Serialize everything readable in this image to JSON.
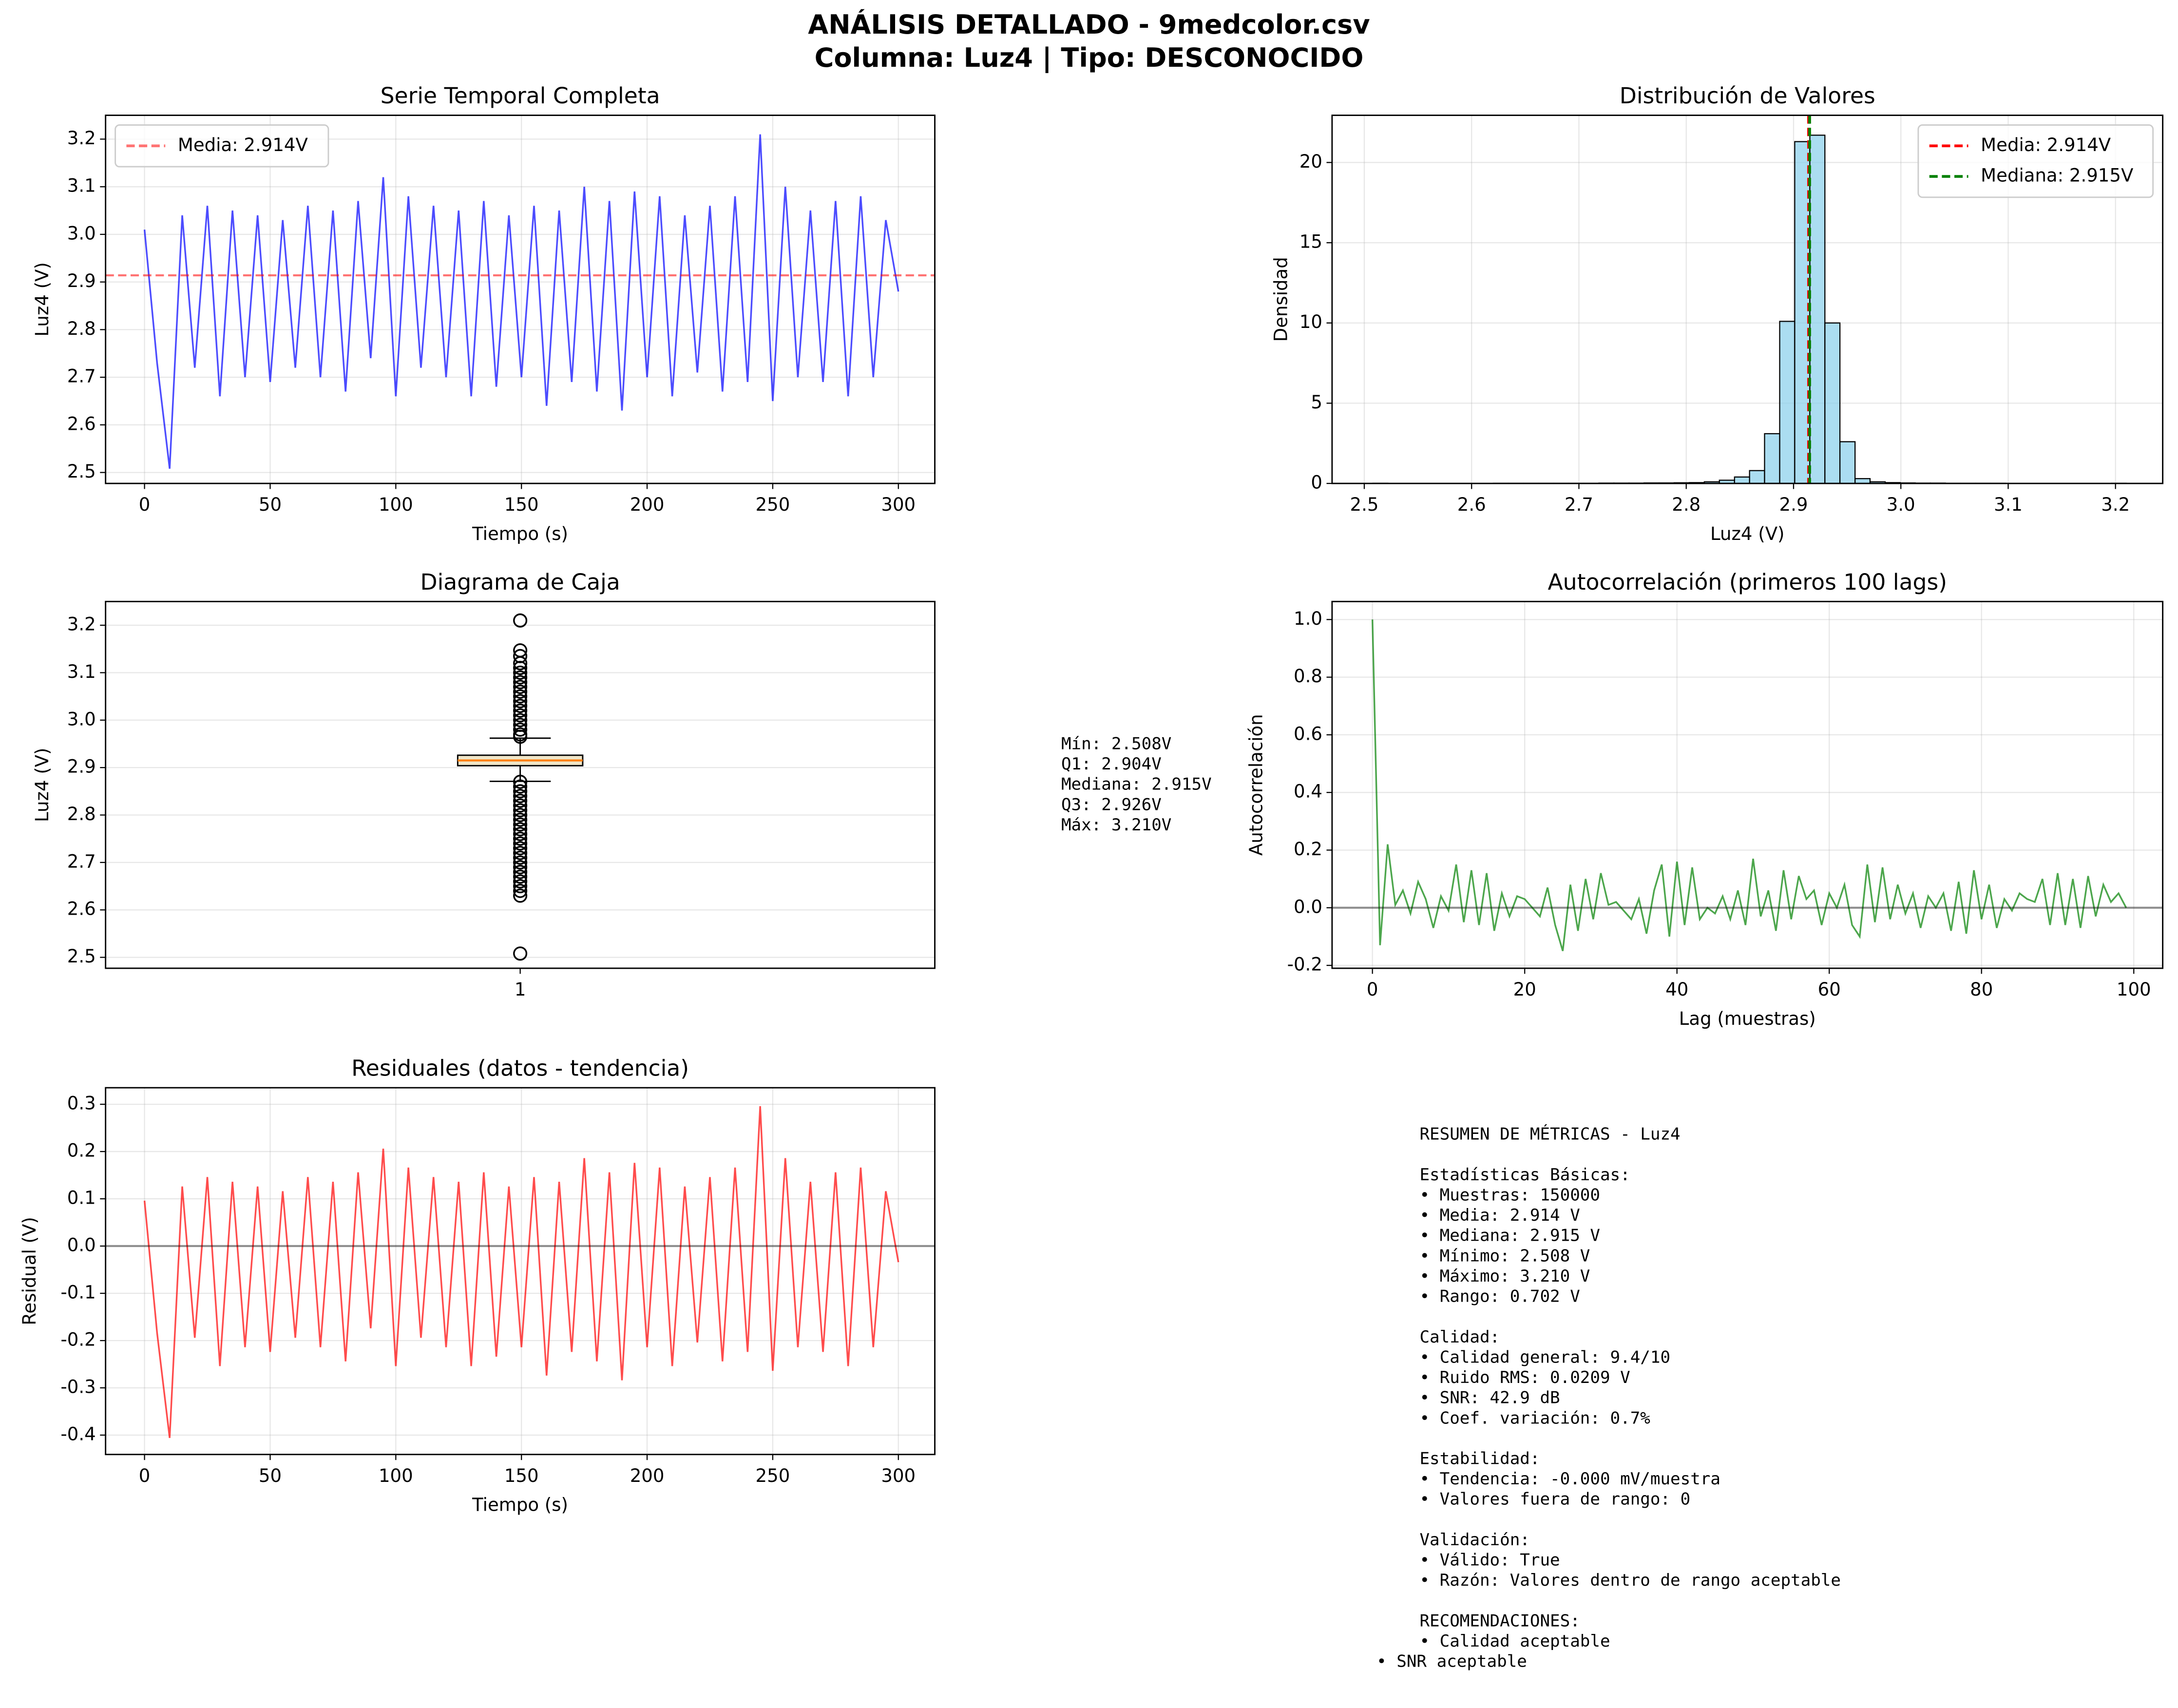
{
  "title": "ANÁLISIS DETALLADO - 9medcolor.csv",
  "subtitle": "Columna: Luz4 | Tipo: DESCONOCIDO",
  "chart_data": [
    {
      "type": "line",
      "title": "Serie Temporal Completa",
      "xlabel": "Tiempo (s)",
      "ylabel": "Luz4 (V)",
      "x": [
        0,
        5,
        10,
        15,
        20,
        25,
        30,
        35,
        40,
        45,
        50,
        55,
        60,
        65,
        70,
        75,
        80,
        85,
        90,
        95,
        100,
        105,
        110,
        115,
        120,
        125,
        130,
        135,
        140,
        145,
        150,
        155,
        160,
        165,
        170,
        175,
        180,
        185,
        190,
        195,
        200,
        205,
        210,
        215,
        220,
        225,
        230,
        235,
        240,
        245,
        250,
        255,
        260,
        265,
        270,
        275,
        280,
        285,
        290,
        295,
        300
      ],
      "series": [
        {
          "color": "#0000ff",
          "values": [
            3.01,
            2.73,
            2.508,
            3.04,
            2.72,
            3.06,
            2.66,
            3.05,
            2.7,
            3.04,
            2.69,
            3.03,
            2.72,
            3.06,
            2.7,
            3.05,
            2.67,
            3.07,
            2.74,
            3.12,
            2.66,
            3.08,
            2.72,
            3.06,
            2.7,
            3.05,
            2.66,
            3.07,
            2.68,
            3.04,
            2.7,
            3.06,
            2.64,
            3.05,
            2.69,
            3.1,
            2.67,
            3.07,
            2.63,
            3.09,
            2.7,
            3.08,
            2.66,
            3.04,
            2.71,
            3.06,
            2.67,
            3.08,
            2.69,
            3.21,
            2.65,
            3.1,
            2.7,
            3.05,
            2.69,
            3.07,
            2.66,
            3.08,
            2.7,
            3.03,
            2.88
          ]
        }
      ],
      "hline": {
        "name": "Media: 2.914V",
        "value": 2.914,
        "color": "#ff0000",
        "style": "dashed"
      },
      "xlim": [
        -15.5,
        314.5
      ],
      "ylim": [
        2.477,
        3.25
      ],
      "xticks": [
        0,
        50,
        100,
        150,
        200,
        250,
        300
      ],
      "yticks": [
        2.5,
        2.6,
        2.7,
        2.8,
        2.9,
        {
          "value": 3.0,
          "label": "3.0"
        },
        3.1,
        3.2
      ],
      "grid": true,
      "legend": "upper left"
    },
    {
      "type": "histogram",
      "title": "Distribución de Valores",
      "xlabel": "Luz4 (V)",
      "ylabel": "Densidad",
      "bins": [
        2.508,
        2.522,
        2.5361,
        2.5501,
        2.5642,
        2.5782,
        2.5922,
        2.6063,
        2.6203,
        2.6344,
        2.6484,
        2.6624,
        2.6765,
        2.6905,
        2.7046,
        2.7186,
        2.7326,
        2.7467,
        2.7607,
        2.7748,
        2.7888,
        2.8028,
        2.8169,
        2.8309,
        2.845,
        2.859,
        2.873,
        2.8871,
        2.9011,
        2.9152,
        2.9292,
        2.9432,
        2.9573,
        2.9713,
        2.9854,
        2.9994,
        3.0134,
        3.0275,
        3.0415,
        3.0556,
        3.0696,
        3.0836,
        3.0977,
        3.1117,
        3.1258,
        3.1398,
        3.1538,
        3.1679,
        3.1819,
        3.196,
        3.21
      ],
      "values": [
        0.01,
        0,
        0,
        0,
        0,
        0,
        0,
        0,
        0.01,
        0.01,
        0.01,
        0.01,
        0.01,
        0.01,
        0.01,
        0.02,
        0.02,
        0.02,
        0.03,
        0.03,
        0.04,
        0.05,
        0.1,
        0.2,
        0.4,
        0.8,
        3.1,
        10.1,
        21.3,
        21.7,
        10.0,
        2.6,
        0.3,
        0.1,
        0.05,
        0.03,
        0.02,
        0.02,
        0.01,
        0.01,
        0.01,
        0.01,
        0,
        0,
        0,
        0,
        0,
        0,
        0,
        0.01
      ],
      "color": "#87ceeb",
      "vlines": [
        {
          "name": "Media: 2.914V",
          "value": 2.914,
          "color": "#ff0000",
          "style": "dashed"
        },
        {
          "name": "Mediana: 2.915V",
          "value": 2.915,
          "color": "#008000",
          "style": "dashed"
        }
      ],
      "xlim": [
        2.47,
        3.244
      ],
      "ylim": [
        0,
        22.94
      ],
      "xticks": [
        2.5,
        2.6,
        2.7,
        2.8,
        2.9,
        {
          "value": 3.0,
          "label": "3.0"
        },
        3.1,
        3.2
      ],
      "yticks": [
        0,
        5,
        10,
        15,
        20
      ],
      "grid": true,
      "legend": "upper right"
    },
    {
      "type": "box",
      "title": "Diagrama de Caja",
      "ylabel": "Luz4 (V)",
      "categories": [
        "1"
      ],
      "q1": 2.904,
      "median": 2.915,
      "q3": 2.926,
      "whisker_low": 2.871,
      "whisker_high": 2.962,
      "outliers": [
        2.508,
        2.63,
        2.64,
        2.65,
        2.66,
        2.67,
        2.68,
        2.69,
        2.7,
        2.71,
        2.72,
        2.73,
        2.74,
        2.75,
        2.76,
        2.77,
        2.78,
        2.79,
        2.8,
        2.81,
        2.82,
        2.83,
        2.84,
        2.85,
        2.86,
        2.87,
        2.965,
        2.97,
        2.98,
        2.99,
        3.0,
        3.01,
        3.02,
        3.03,
        3.04,
        3.05,
        3.06,
        3.07,
        3.08,
        3.09,
        3.1,
        3.11,
        3.12,
        3.135,
        3.147,
        3.21
      ],
      "color": "#f0e6c8",
      "median_color": "#ff7f0e",
      "ylim": [
        2.477,
        3.25
      ],
      "yticks": [
        2.5,
        2.6,
        2.7,
        2.8,
        2.9,
        {
          "value": 3.0,
          "label": "3.0"
        },
        3.1,
        3.2
      ],
      "grid": true
    },
    {
      "type": "line",
      "title": "Autocorrelación (primeros 100 lags)",
      "xlabel": "Lag (muestras)",
      "ylabel": "Autocorrelación",
      "x": [
        0,
        1,
        2,
        3,
        4,
        5,
        6,
        7,
        8,
        9,
        10,
        11,
        12,
        13,
        14,
        15,
        16,
        17,
        18,
        19,
        20,
        21,
        22,
        23,
        24,
        25,
        26,
        27,
        28,
        29,
        30,
        31,
        32,
        33,
        34,
        35,
        36,
        37,
        38,
        39,
        40,
        41,
        42,
        43,
        44,
        45,
        46,
        47,
        48,
        49,
        50,
        51,
        52,
        53,
        54,
        55,
        56,
        57,
        58,
        59,
        60,
        61,
        62,
        63,
        64,
        65,
        66,
        67,
        68,
        69,
        70,
        71,
        72,
        73,
        74,
        75,
        76,
        77,
        78,
        79,
        80,
        81,
        82,
        83,
        84,
        85,
        86,
        87,
        88,
        89,
        90,
        91,
        92,
        93,
        94,
        95,
        96,
        97,
        98,
        99
      ],
      "series": [
        {
          "color": "#008000",
          "values": [
            1.0,
            -0.13,
            0.22,
            0.01,
            0.06,
            -0.02,
            0.09,
            0.03,
            -0.07,
            0.04,
            -0.01,
            0.15,
            -0.05,
            0.13,
            -0.06,
            0.12,
            -0.08,
            0.05,
            -0.03,
            0.04,
            0.03,
            0.0,
            -0.03,
            0.07,
            -0.06,
            -0.15,
            0.08,
            -0.08,
            0.1,
            -0.04,
            0.12,
            0.01,
            0.02,
            -0.01,
            -0.04,
            0.03,
            -0.09,
            0.06,
            0.15,
            -0.1,
            0.16,
            -0.06,
            0.14,
            -0.04,
            0.0,
            -0.02,
            0.04,
            -0.04,
            0.06,
            -0.06,
            0.17,
            -0.03,
            0.06,
            -0.08,
            0.13,
            -0.04,
            0.11,
            0.03,
            0.06,
            -0.06,
            0.05,
            0.0,
            0.08,
            -0.06,
            -0.1,
            0.15,
            -0.05,
            0.14,
            -0.04,
            0.08,
            -0.02,
            0.05,
            -0.07,
            0.04,
            0.0,
            0.05,
            -0.08,
            0.09,
            -0.09,
            0.13,
            -0.04,
            0.08,
            -0.07,
            0.03,
            -0.01,
            0.05,
            0.03,
            0.02,
            0.1,
            -0.06,
            0.12,
            -0.06,
            0.1,
            -0.07,
            0.11,
            -0.03,
            0.08,
            0.02,
            0.05,
            0.0
          ]
        }
      ],
      "hline": {
        "value": 0,
        "color": "#000000",
        "style": "solid"
      },
      "xlim": [
        -5.3,
        103.8
      ],
      "ylim": [
        -0.21,
        1.0625
      ],
      "xticks": [
        0,
        20,
        40,
        60,
        80,
        100
      ],
      "yticks": [
        -0.2,
        {
          "value": 0,
          "label": "0.0"
        },
        0.2,
        0.4,
        0.6,
        0.8,
        {
          "value": 1,
          "label": "1.0"
        }
      ],
      "grid": true
    },
    {
      "type": "line",
      "title": "Residuales (datos - tendencia)",
      "xlabel": "Tiempo (s)",
      "ylabel": "Residual (V)",
      "x": [
        0,
        5,
        10,
        15,
        20,
        25,
        30,
        35,
        40,
        45,
        50,
        55,
        60,
        65,
        70,
        75,
        80,
        85,
        90,
        95,
        100,
        105,
        110,
        115,
        120,
        125,
        130,
        135,
        140,
        145,
        150,
        155,
        160,
        165,
        170,
        175,
        180,
        185,
        190,
        195,
        200,
        205,
        210,
        215,
        220,
        225,
        230,
        235,
        240,
        245,
        250,
        255,
        260,
        265,
        270,
        275,
        280,
        285,
        290,
        295,
        300
      ],
      "series": [
        {
          "color": "#ff0000",
          "values": [
            0.096,
            -0.184,
            -0.406,
            0.126,
            -0.194,
            0.146,
            -0.254,
            0.136,
            -0.214,
            0.126,
            -0.224,
            0.116,
            -0.194,
            0.146,
            -0.214,
            0.136,
            -0.244,
            0.156,
            -0.174,
            0.206,
            -0.254,
            0.166,
            -0.194,
            0.146,
            -0.214,
            0.136,
            -0.254,
            0.156,
            -0.234,
            0.126,
            -0.214,
            0.146,
            -0.274,
            0.136,
            -0.224,
            0.186,
            -0.244,
            0.156,
            -0.284,
            0.176,
            -0.214,
            0.166,
            -0.254,
            0.126,
            -0.204,
            0.146,
            -0.244,
            0.166,
            -0.224,
            0.296,
            -0.264,
            0.186,
            -0.214,
            0.136,
            -0.224,
            0.156,
            -0.254,
            0.166,
            -0.214,
            0.116,
            -0.034
          ]
        }
      ],
      "hline": {
        "value": 0,
        "color": "#000000",
        "style": "solid"
      },
      "xlim": [
        -15.5,
        314.5
      ],
      "ylim": [
        -0.441,
        0.335
      ],
      "xticks": [
        0,
        50,
        100,
        150,
        200,
        250,
        300
      ],
      "yticks": [
        -0.4,
        -0.3,
        -0.2,
        -0.1,
        {
          "value": 0,
          "label": "0.0"
        },
        0.1,
        0.2,
        0.3
      ],
      "grid": true
    }
  ],
  "box_stats_text": [
    "Mín: 2.508V",
    "Q1: 2.904V",
    "Mediana: 2.915V",
    "Q3: 2.926V",
    "Máx: 3.210V"
  ],
  "metrics_summary": [
    [
      "RESUMEN DE MÉTRICAS - Luz4"
    ],
    [
      "Estadísticas Básicas:",
      "• Muestras: 150000",
      "• Media: 2.914 V",
      "• Mediana: 2.915 V",
      "• Mínimo: 2.508 V",
      "• Máximo: 3.210 V",
      "• Rango: 0.702 V"
    ],
    [
      "Calidad:",
      "• Calidad general: 9.4/10",
      "• Ruido RMS: 0.0209 V",
      "• SNR: 42.9 dB",
      "• Coef. variación: 0.7%"
    ],
    [
      "Estabilidad:",
      "• Tendencia: -0.000 mV/muestra",
      "• Valores fuera de rango: 0"
    ],
    [
      "Validación:",
      "• Válido: True",
      "• Razón: Valores dentro de rango aceptable"
    ],
    [
      "RECOMENDACIONES:",
      "• Calidad aceptable",
      "• SNR aceptable"
    ]
  ]
}
